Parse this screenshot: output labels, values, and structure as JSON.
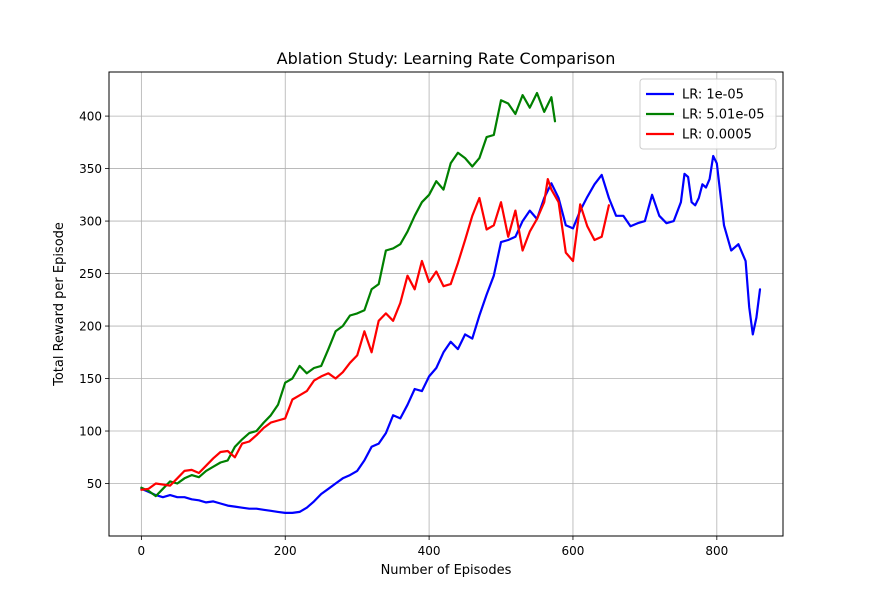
{
  "chart_data": {
    "type": "line",
    "title": "Ablation Study: Learning Rate Comparison",
    "xlabel": "Number of Episodes",
    "ylabel": "Total Reward per Episode",
    "xlim": [
      -45,
      892
    ],
    "ylim": [
      0,
      442
    ],
    "xticks": [
      0,
      200,
      400,
      600,
      800
    ],
    "yticks": [
      50,
      100,
      150,
      200,
      250,
      300,
      350,
      400
    ],
    "grid": true,
    "legend_position": "top-right",
    "series": [
      {
        "name": "LR: 1e-05",
        "color": "#0000ff",
        "points": [
          [
            0,
            45
          ],
          [
            10,
            42
          ],
          [
            20,
            39
          ],
          [
            30,
            37
          ],
          [
            40,
            39
          ],
          [
            50,
            37
          ],
          [
            60,
            37
          ],
          [
            70,
            35
          ],
          [
            80,
            34
          ],
          [
            90,
            32
          ],
          [
            100,
            33
          ],
          [
            110,
            31
          ],
          [
            120,
            29
          ],
          [
            130,
            28
          ],
          [
            140,
            27
          ],
          [
            150,
            26
          ],
          [
            160,
            26
          ],
          [
            170,
            25
          ],
          [
            180,
            24
          ],
          [
            190,
            23
          ],
          [
            200,
            22
          ],
          [
            210,
            22
          ],
          [
            220,
            23
          ],
          [
            230,
            27
          ],
          [
            240,
            33
          ],
          [
            250,
            40
          ],
          [
            260,
            45
          ],
          [
            270,
            50
          ],
          [
            280,
            55
          ],
          [
            290,
            58
          ],
          [
            300,
            62
          ],
          [
            310,
            72
          ],
          [
            320,
            85
          ],
          [
            330,
            88
          ],
          [
            340,
            98
          ],
          [
            350,
            115
          ],
          [
            360,
            112
          ],
          [
            370,
            125
          ],
          [
            380,
            140
          ],
          [
            390,
            138
          ],
          [
            400,
            152
          ],
          [
            410,
            160
          ],
          [
            420,
            175
          ],
          [
            430,
            185
          ],
          [
            440,
            178
          ],
          [
            450,
            192
          ],
          [
            460,
            188
          ],
          [
            470,
            210
          ],
          [
            480,
            230
          ],
          [
            490,
            248
          ],
          [
            500,
            280
          ],
          [
            510,
            282
          ],
          [
            520,
            285
          ],
          [
            530,
            300
          ],
          [
            540,
            310
          ],
          [
            550,
            302
          ],
          [
            560,
            322
          ],
          [
            570,
            336
          ],
          [
            580,
            322
          ],
          [
            590,
            296
          ],
          [
            600,
            293
          ],
          [
            610,
            310
          ],
          [
            620,
            323
          ],
          [
            630,
            335
          ],
          [
            640,
            344
          ],
          [
            650,
            322
          ],
          [
            660,
            305
          ],
          [
            670,
            305
          ],
          [
            680,
            295
          ],
          [
            690,
            298
          ],
          [
            700,
            300
          ],
          [
            710,
            325
          ],
          [
            720,
            305
          ],
          [
            730,
            298
          ],
          [
            740,
            300
          ],
          [
            750,
            318
          ],
          [
            755,
            345
          ],
          [
            760,
            342
          ],
          [
            765,
            318
          ],
          [
            770,
            315
          ],
          [
            775,
            322
          ],
          [
            780,
            335
          ],
          [
            785,
            332
          ],
          [
            790,
            340
          ],
          [
            795,
            362
          ],
          [
            800,
            355
          ],
          [
            810,
            296
          ],
          [
            820,
            272
          ],
          [
            830,
            278
          ],
          [
            840,
            262
          ],
          [
            845,
            218
          ],
          [
            850,
            192
          ],
          [
            855,
            208
          ],
          [
            860,
            235
          ]
        ]
      },
      {
        "name": "LR: 5.01e-05",
        "color": "#008000",
        "points": [
          [
            0,
            46
          ],
          [
            10,
            43
          ],
          [
            20,
            38
          ],
          [
            30,
            45
          ],
          [
            40,
            52
          ],
          [
            50,
            50
          ],
          [
            60,
            55
          ],
          [
            70,
            58
          ],
          [
            80,
            56
          ],
          [
            90,
            62
          ],
          [
            100,
            66
          ],
          [
            110,
            70
          ],
          [
            120,
            72
          ],
          [
            130,
            85
          ],
          [
            140,
            92
          ],
          [
            150,
            98
          ],
          [
            160,
            100
          ],
          [
            170,
            108
          ],
          [
            180,
            115
          ],
          [
            190,
            125
          ],
          [
            200,
            146
          ],
          [
            210,
            150
          ],
          [
            220,
            162
          ],
          [
            230,
            155
          ],
          [
            240,
            160
          ],
          [
            250,
            162
          ],
          [
            260,
            178
          ],
          [
            270,
            195
          ],
          [
            280,
            200
          ],
          [
            290,
            210
          ],
          [
            300,
            212
          ],
          [
            310,
            215
          ],
          [
            320,
            235
          ],
          [
            330,
            240
          ],
          [
            340,
            272
          ],
          [
            350,
            274
          ],
          [
            360,
            278
          ],
          [
            370,
            290
          ],
          [
            380,
            305
          ],
          [
            390,
            318
          ],
          [
            400,
            325
          ],
          [
            410,
            338
          ],
          [
            420,
            330
          ],
          [
            430,
            355
          ],
          [
            440,
            365
          ],
          [
            450,
            360
          ],
          [
            460,
            352
          ],
          [
            470,
            360
          ],
          [
            480,
            380
          ],
          [
            490,
            382
          ],
          [
            500,
            415
          ],
          [
            510,
            412
          ],
          [
            520,
            402
          ],
          [
            530,
            420
          ],
          [
            540,
            408
          ],
          [
            550,
            422
          ],
          [
            560,
            404
          ],
          [
            570,
            418
          ],
          [
            575,
            395
          ]
        ]
      },
      {
        "name": "LR: 0.0005",
        "color": "#ff0000",
        "points": [
          [
            0,
            44
          ],
          [
            10,
            45
          ],
          [
            20,
            50
          ],
          [
            30,
            49
          ],
          [
            40,
            48
          ],
          [
            50,
            55
          ],
          [
            60,
            62
          ],
          [
            70,
            63
          ],
          [
            80,
            60
          ],
          [
            90,
            67
          ],
          [
            100,
            74
          ],
          [
            110,
            80
          ],
          [
            120,
            81
          ],
          [
            130,
            75
          ],
          [
            140,
            88
          ],
          [
            150,
            90
          ],
          [
            160,
            96
          ],
          [
            170,
            103
          ],
          [
            180,
            108
          ],
          [
            190,
            110
          ],
          [
            200,
            112
          ],
          [
            210,
            130
          ],
          [
            220,
            134
          ],
          [
            230,
            138
          ],
          [
            240,
            148
          ],
          [
            250,
            152
          ],
          [
            260,
            155
          ],
          [
            270,
            150
          ],
          [
            280,
            156
          ],
          [
            290,
            165
          ],
          [
            300,
            172
          ],
          [
            310,
            195
          ],
          [
            320,
            175
          ],
          [
            330,
            205
          ],
          [
            340,
            212
          ],
          [
            350,
            205
          ],
          [
            360,
            222
          ],
          [
            370,
            248
          ],
          [
            380,
            235
          ],
          [
            390,
            262
          ],
          [
            400,
            242
          ],
          [
            410,
            252
          ],
          [
            420,
            238
          ],
          [
            430,
            240
          ],
          [
            440,
            260
          ],
          [
            450,
            282
          ],
          [
            460,
            305
          ],
          [
            470,
            322
          ],
          [
            480,
            292
          ],
          [
            490,
            296
          ],
          [
            500,
            318
          ],
          [
            510,
            285
          ],
          [
            520,
            310
          ],
          [
            530,
            272
          ],
          [
            540,
            290
          ],
          [
            550,
            302
          ],
          [
            560,
            318
          ],
          [
            565,
            340
          ],
          [
            570,
            330
          ],
          [
            580,
            318
          ],
          [
            590,
            270
          ],
          [
            600,
            262
          ],
          [
            610,
            316
          ],
          [
            620,
            295
          ],
          [
            630,
            282
          ],
          [
            640,
            285
          ],
          [
            650,
            315
          ]
        ]
      }
    ]
  }
}
